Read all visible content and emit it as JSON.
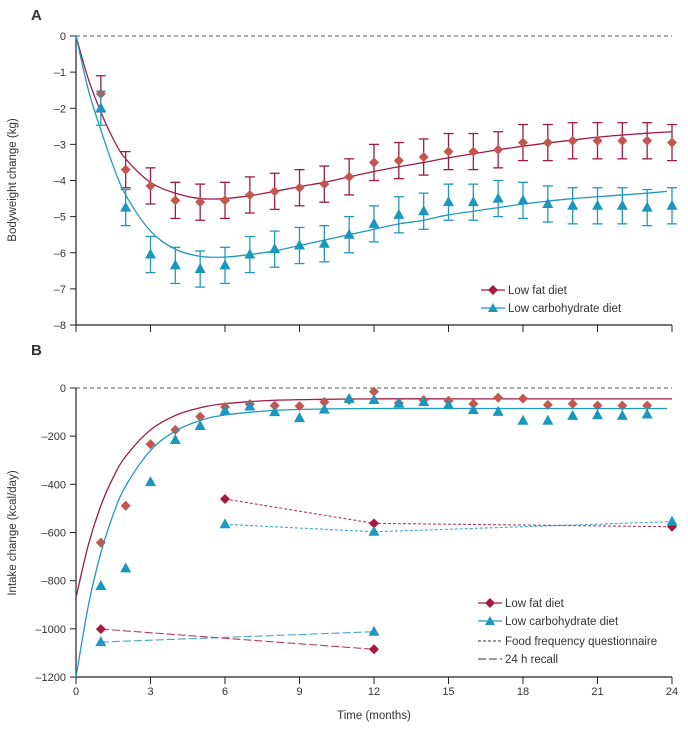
{
  "chart_data": [
    {
      "panel": "A",
      "type": "line",
      "xlabel": "",
      "ylabel": "Bodyweight change (kg)",
      "xlim": [
        0,
        24
      ],
      "ylim": [
        -8,
        0
      ],
      "xticks": [
        0,
        3,
        6,
        9,
        12,
        15,
        18,
        21,
        24
      ],
      "yticks": [
        "0",
        "–1",
        "–2",
        "–3",
        "–4",
        "–5",
        "–6",
        "–7",
        "–8"
      ],
      "ytick_values": [
        0,
        -1,
        -2,
        -3,
        -4,
        -5,
        -6,
        -7,
        -8
      ],
      "reference_line": 0,
      "legend_position": "bottom-right",
      "series": [
        {
          "name": "Low fat diet",
          "color": "#9e1b48",
          "marker_color": "#c4554f",
          "marker": "diamond",
          "x": [
            1,
            2,
            3,
            4,
            5,
            6,
            7,
            8,
            9,
            10,
            11,
            12,
            13,
            14,
            15,
            16,
            17,
            18,
            19,
            20,
            21,
            22,
            23,
            24
          ],
          "y": [
            -1.6,
            -3.7,
            -4.15,
            -4.55,
            -4.6,
            -4.55,
            -4.4,
            -4.3,
            -4.2,
            -4.1,
            -3.9,
            -3.5,
            -3.45,
            -3.35,
            -3.2,
            -3.2,
            -3.15,
            -2.95,
            -2.95,
            -2.9,
            -2.9,
            -2.9,
            -2.9,
            -2.95
          ],
          "error": [
            0.5,
            0.5,
            0.5,
            0.5,
            0.5,
            0.5,
            0.5,
            0.5,
            0.5,
            0.5,
            0.5,
            0.5,
            0.5,
            0.5,
            0.5,
            0.5,
            0.5,
            0.5,
            0.5,
            0.5,
            0.5,
            0.5,
            0.5,
            0.5
          ],
          "fit_x": [
            0,
            0.5,
            1,
            1.5,
            2,
            3,
            4,
            5,
            6,
            7,
            8,
            9,
            10,
            11,
            12,
            13,
            14,
            15,
            16,
            17,
            18,
            19,
            20,
            21,
            22,
            23,
            24
          ],
          "fit_y": [
            0,
            -1.2,
            -2.1,
            -2.85,
            -3.4,
            -4.05,
            -4.35,
            -4.5,
            -4.5,
            -4.42,
            -4.3,
            -4.17,
            -4.05,
            -3.9,
            -3.75,
            -3.62,
            -3.5,
            -3.37,
            -3.26,
            -3.15,
            -3.05,
            -2.96,
            -2.88,
            -2.8,
            -2.74,
            -2.69,
            -2.65
          ]
        },
        {
          "name": "Low carbohydrate diet",
          "color": "#2199bd",
          "marker_color": "#1a97bd",
          "marker": "triangle",
          "x": [
            1,
            2,
            3,
            4,
            5,
            6,
            7,
            8,
            9,
            10,
            11,
            12,
            13,
            14,
            15,
            16,
            17,
            18,
            19,
            20,
            21,
            22,
            23,
            24
          ],
          "y": [
            -2.0,
            -4.75,
            -6.05,
            -6.35,
            -6.45,
            -6.35,
            -6.05,
            -5.9,
            -5.8,
            -5.75,
            -5.5,
            -5.2,
            -4.95,
            -4.85,
            -4.6,
            -4.6,
            -4.5,
            -4.55,
            -4.65,
            -4.7,
            -4.7,
            -4.7,
            -4.75,
            -4.7
          ],
          "error": [
            0.47,
            0.5,
            0.5,
            0.5,
            0.5,
            0.5,
            0.5,
            0.5,
            0.5,
            0.5,
            0.5,
            0.5,
            0.5,
            0.5,
            0.5,
            0.5,
            0.5,
            0.5,
            0.5,
            0.5,
            0.5,
            0.5,
            0.5,
            0.5
          ],
          "fit_x": [
            0,
            0.5,
            1,
            1.5,
            2,
            3,
            4,
            5,
            6,
            7,
            8,
            9,
            10,
            11,
            12,
            13,
            14,
            15,
            16,
            17,
            18,
            19,
            20,
            21,
            22,
            23,
            23.8
          ],
          "fit_y": [
            0,
            -1.5,
            -2.6,
            -3.6,
            -4.4,
            -5.4,
            -5.9,
            -6.1,
            -6.12,
            -6.05,
            -5.95,
            -5.8,
            -5.65,
            -5.5,
            -5.35,
            -5.2,
            -5.1,
            -4.95,
            -4.85,
            -4.75,
            -4.65,
            -4.57,
            -4.5,
            -4.45,
            -4.4,
            -4.35,
            -4.3
          ]
        }
      ]
    },
    {
      "panel": "B",
      "type": "scatter",
      "xlabel": "Time (months)",
      "ylabel": "Intake change (kcal/day)",
      "xlim": [
        0,
        24
      ],
      "ylim": [
        -1200,
        0
      ],
      "xticks": [
        0,
        3,
        6,
        9,
        12,
        15,
        18,
        21,
        24
      ],
      "yticks": [
        "0",
        "–200",
        "–400",
        "–600",
        "–800",
        "–1000",
        "–1200"
      ],
      "ytick_values": [
        0,
        -200,
        -400,
        -600,
        -800,
        -1000,
        -1200
      ],
      "reference_line": 0,
      "legend_position": "bottom-right",
      "series": [
        {
          "name": "Low fat diet",
          "color": "#9e1b48",
          "marker_color": "#c4554f",
          "marker": "diamond",
          "x": [
            1,
            2,
            3,
            4,
            5,
            6,
            7,
            8,
            9,
            10,
            11,
            12,
            13,
            14,
            15,
            16,
            17,
            18,
            19,
            20,
            21,
            22,
            23
          ],
          "y": [
            -642,
            -489,
            -233,
            -174,
            -119,
            -79,
            -67,
            -73,
            -75,
            -58,
            -50,
            -15,
            -63,
            -50,
            -53,
            -66,
            -40,
            -44,
            -70,
            -66,
            -73,
            -73,
            -73
          ],
          "fit_x": [
            0,
            0.5,
            1,
            1.5,
            2,
            3,
            4,
            5,
            6,
            8,
            10,
            12,
            15,
            18,
            21,
            24
          ],
          "fit_y": [
            -870,
            -650,
            -489,
            -371,
            -284,
            -174,
            -114,
            -82,
            -65,
            -51,
            -47,
            -45,
            -45,
            -45,
            -45,
            -45
          ]
        },
        {
          "name": "Low carbohydrate diet",
          "color": "#2199bd",
          "marker_color": "#1a97bd",
          "marker": "triangle",
          "x": [
            1,
            2,
            3,
            4,
            5,
            6,
            7,
            8,
            9,
            10,
            11,
            12,
            13,
            14,
            15,
            16,
            17,
            18,
            19,
            20,
            21,
            22,
            23
          ],
          "y": [
            -822,
            -749,
            -391,
            -216,
            -158,
            -95,
            -77,
            -100,
            -125,
            -90,
            -45,
            -50,
            -65,
            -58,
            -71,
            -92,
            -99,
            -136,
            -136,
            -116,
            -113,
            -116,
            -110
          ],
          "fit_x": [
            0,
            0.5,
            1,
            1.5,
            2,
            3,
            4,
            5,
            6,
            8,
            10,
            12,
            15,
            18,
            21,
            23.8
          ],
          "fit_y": [
            -1200,
            -902,
            -685,
            -525,
            -407,
            -259,
            -179,
            -135,
            -112,
            -93,
            -87,
            -85,
            -85,
            -85,
            -85,
            -85
          ]
        },
        {
          "name": "Low fat diet",
          "method": "Food frequency questionnaire",
          "color": "#a8173f",
          "marker": "diamond",
          "dash": "short",
          "x": [
            6,
            12,
            24
          ],
          "y": [
            -461,
            -562,
            -576
          ]
        },
        {
          "name": "Low carbohydrate diet",
          "method": "Food frequency questionnaire",
          "color": "#2199bd",
          "marker": "triangle",
          "dash": "short",
          "x": [
            6,
            12,
            24
          ],
          "y": [
            -566,
            -597,
            -555
          ]
        },
        {
          "name": "Low fat diet",
          "method": "24 h recall",
          "color": "#a8173f",
          "marker": "diamond",
          "dash": "long",
          "x": [
            1,
            12
          ],
          "y": [
            -1001,
            -1085
          ]
        },
        {
          "name": "Low carbohydrate diet",
          "method": "24 h recall",
          "color": "#2199bd",
          "marker": "triangle",
          "dash": "long",
          "x": [
            1,
            12
          ],
          "y": [
            -1055,
            -1012
          ]
        }
      ],
      "legend": [
        "Low fat diet",
        "Low carbohydrate diet",
        "Food frequency questionnaire",
        "24 h recall"
      ]
    }
  ]
}
